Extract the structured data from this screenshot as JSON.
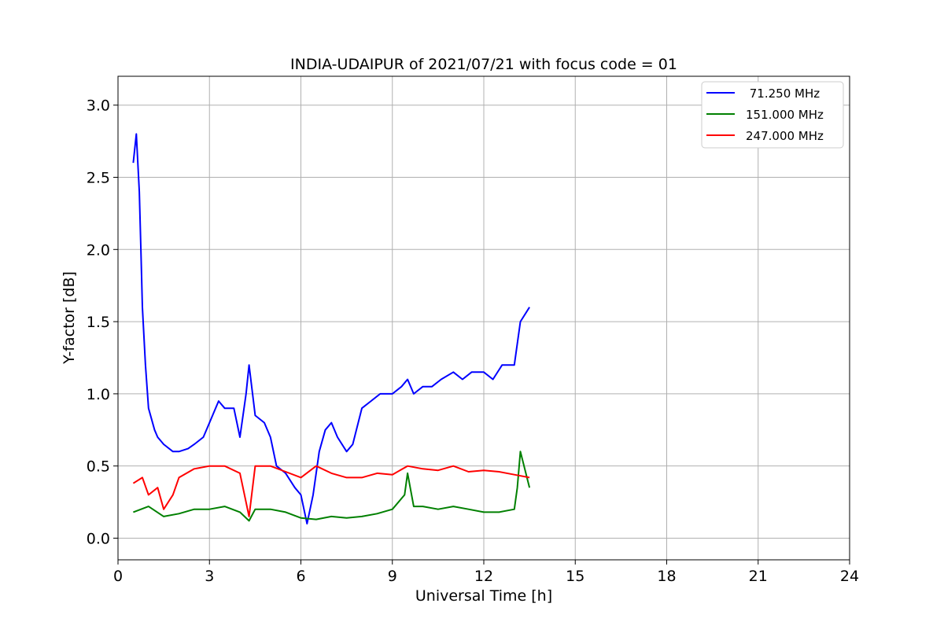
{
  "chart_data": {
    "type": "line",
    "title": "INDIA-UDAIPUR of 2021/07/21 with focus code = 01",
    "xlabel": "Universal Time [h]",
    "ylabel": "Y-factor [dB]",
    "xlim": [
      0,
      24
    ],
    "ylim": [
      -0.15,
      3.2
    ],
    "xticks": [
      "0",
      "3",
      "6",
      "9",
      "12",
      "15",
      "18",
      "21",
      "24"
    ],
    "yticks": [
      "0.0",
      "0.5",
      "1.0",
      "1.5",
      "2.0",
      "2.5",
      "3.0"
    ],
    "grid": true,
    "legend_position": "top-right",
    "series": [
      {
        "name": " 71.250 MHz",
        "color": "#0000ff",
        "x": [
          0.5,
          0.6,
          0.7,
          0.75,
          0.8,
          0.9,
          1.0,
          1.2,
          1.3,
          1.5,
          1.8,
          2.0,
          2.3,
          2.5,
          2.8,
          3.0,
          3.3,
          3.5,
          3.8,
          4.0,
          4.2,
          4.3,
          4.5,
          4.8,
          5.0,
          5.2,
          5.5,
          5.8,
          6.0,
          6.2,
          6.4,
          6.6,
          6.8,
          7.0,
          7.2,
          7.5,
          7.7,
          8.0,
          8.3,
          8.6,
          9.0,
          9.3,
          9.5,
          9.7,
          10.0,
          10.3,
          10.6,
          11.0,
          11.3,
          11.6,
          12.0,
          12.3,
          12.6,
          13.0,
          13.2,
          13.5
        ],
        "values": [
          2.6,
          2.8,
          2.4,
          2.0,
          1.6,
          1.2,
          0.9,
          0.75,
          0.7,
          0.65,
          0.6,
          0.6,
          0.62,
          0.65,
          0.7,
          0.8,
          0.95,
          0.9,
          0.9,
          0.7,
          1.0,
          1.2,
          0.85,
          0.8,
          0.7,
          0.5,
          0.45,
          0.35,
          0.3,
          0.1,
          0.3,
          0.6,
          0.75,
          0.8,
          0.7,
          0.6,
          0.65,
          0.9,
          0.95,
          1.0,
          1.0,
          1.05,
          1.1,
          1.0,
          1.05,
          1.05,
          1.1,
          1.15,
          1.1,
          1.15,
          1.15,
          1.1,
          1.2,
          1.2,
          1.5,
          1.6
        ]
      },
      {
        "name": "151.000 MHz",
        "color": "#008000",
        "x": [
          0.5,
          1.0,
          1.5,
          2.0,
          2.5,
          3.0,
          3.5,
          4.0,
          4.3,
          4.5,
          5.0,
          5.5,
          6.0,
          6.5,
          7.0,
          7.5,
          8.0,
          8.5,
          9.0,
          9.4,
          9.5,
          9.7,
          10.0,
          10.5,
          11.0,
          11.5,
          12.0,
          12.5,
          13.0,
          13.1,
          13.2,
          13.5
        ],
        "values": [
          0.18,
          0.22,
          0.15,
          0.17,
          0.2,
          0.2,
          0.22,
          0.18,
          0.12,
          0.2,
          0.2,
          0.18,
          0.14,
          0.13,
          0.15,
          0.14,
          0.15,
          0.17,
          0.2,
          0.3,
          0.45,
          0.22,
          0.22,
          0.2,
          0.22,
          0.2,
          0.18,
          0.18,
          0.2,
          0.35,
          0.6,
          0.35
        ]
      },
      {
        "name": "247.000 MHz",
        "color": "#ff0000",
        "x": [
          0.5,
          0.8,
          1.0,
          1.3,
          1.5,
          1.8,
          2.0,
          2.5,
          3.0,
          3.5,
          4.0,
          4.3,
          4.5,
          5.0,
          5.5,
          6.0,
          6.5,
          7.0,
          7.5,
          8.0,
          8.5,
          9.0,
          9.5,
          10.0,
          10.5,
          11.0,
          11.5,
          12.0,
          12.5,
          13.0,
          13.5
        ],
        "values": [
          0.38,
          0.42,
          0.3,
          0.35,
          0.2,
          0.3,
          0.42,
          0.48,
          0.5,
          0.5,
          0.45,
          0.15,
          0.5,
          0.5,
          0.46,
          0.42,
          0.5,
          0.45,
          0.42,
          0.42,
          0.45,
          0.44,
          0.5,
          0.48,
          0.47,
          0.5,
          0.46,
          0.47,
          0.46,
          0.44,
          0.42
        ]
      }
    ]
  }
}
